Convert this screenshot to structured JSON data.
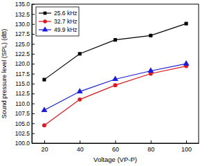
{
  "chart_data": {
    "type": "line",
    "x_label": "Voltage (VP-P)",
    "y_label": "Sound pressure level (SPL) (dB)",
    "x": [
      20,
      40,
      60,
      80,
      100
    ],
    "series": [
      {
        "name": "25.6 kHz",
        "color": "#000000",
        "marker": "square",
        "values": [
          116.0,
          122.5,
          126.0,
          127.1,
          130.1
        ]
      },
      {
        "name": "32.7 kHz",
        "color": "#e8141c",
        "marker": "circle",
        "values": [
          104.5,
          111.0,
          114.6,
          117.5,
          119.4
        ]
      },
      {
        "name": "49.9 kHz",
        "color": "#1a1ae6",
        "marker": "triangle",
        "values": [
          108.3,
          113.0,
          116.1,
          118.2,
          120.0
        ]
      }
    ],
    "xlim": [
      13,
      107
    ],
    "xticks": [
      20,
      40,
      60,
      80,
      100
    ],
    "ylim": [
      100,
      135
    ],
    "yticks": [
      {
        "value": 100,
        "label": "100.0"
      },
      102.5,
      {
        "value": 105,
        "label": "105.0"
      },
      107.5,
      {
        "value": 110,
        "label": "110.0"
      },
      112.5,
      {
        "value": 115,
        "label": "115.0"
      },
      117.5,
      {
        "value": 120,
        "label": "120.0"
      },
      122.5,
      {
        "value": 125,
        "label": "125.0"
      },
      127.5,
      {
        "value": 130,
        "label": "130.0"
      },
      132.5,
      {
        "value": 135,
        "label": "135.0"
      }
    ],
    "grid": false,
    "legend": "upper left"
  }
}
